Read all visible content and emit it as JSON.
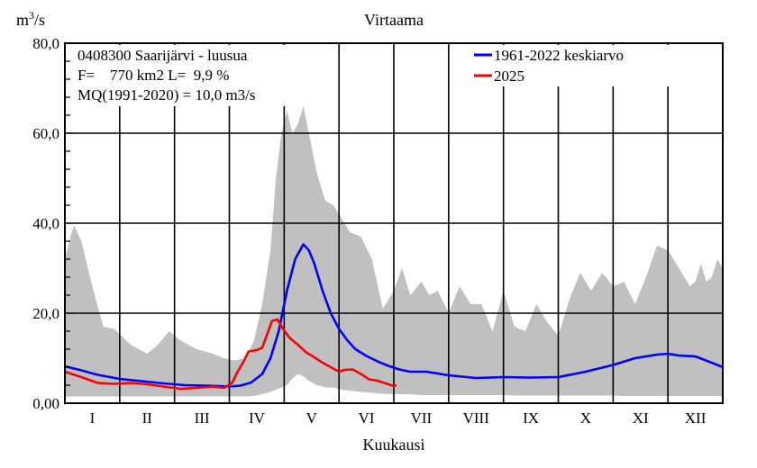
{
  "chart_data": {
    "type": "area",
    "title": "Virtaama",
    "ylabel_prefix": "m",
    "ylabel_sup": "3",
    "ylabel_suffix": "/s",
    "xlabel": "Kuukausi",
    "ylim": [
      0,
      80
    ],
    "xlim": [
      0,
      12
    ],
    "yticks": [
      {
        "value": 0,
        "label": "0,00"
      },
      {
        "value": 20,
        "label": "20,0"
      },
      {
        "value": 40,
        "label": "40,0"
      },
      {
        "value": 60,
        "label": "60,0"
      },
      {
        "value": 80,
        "label": "80,0"
      }
    ],
    "months": [
      "I",
      "II",
      "III",
      "IV",
      "V",
      "VI",
      "VII",
      "VIII",
      "IX",
      "X",
      "XI",
      "XII"
    ],
    "grid": true,
    "legend_placement": "top-right",
    "info": [
      "0408300 Saarijärvi - luusua",
      "F=    770 km2 L=  9,9 %",
      "MQ(1991-2020) = 10,0 m3/s"
    ],
    "colors": {
      "mean": "#0000ff",
      "current": "#ff0000",
      "range": "#c0c0c0"
    },
    "band": {
      "x": [
        0.0,
        0.1,
        0.17,
        0.3,
        0.5,
        0.7,
        0.9,
        1.2,
        1.5,
        1.7,
        1.9,
        2.1,
        2.4,
        2.7,
        2.9,
        3.1,
        3.3,
        3.45,
        3.6,
        3.75,
        3.85,
        3.95,
        4.05,
        4.15,
        4.25,
        4.35,
        4.45,
        4.6,
        4.75,
        4.9,
        5.05,
        5.2,
        5.4,
        5.6,
        5.8,
        6.0,
        6.15,
        6.3,
        6.5,
        6.65,
        6.8,
        7.0,
        7.2,
        7.4,
        7.6,
        7.8,
        8.0,
        8.2,
        8.4,
        8.6,
        8.8,
        9.0,
        9.2,
        9.4,
        9.6,
        9.8,
        10.0,
        10.2,
        10.4,
        10.6,
        10.8,
        11.0,
        11.2,
        11.4,
        11.5,
        11.6,
        11.7,
        11.8,
        11.9,
        12.0
      ],
      "upper": [
        32,
        37,
        39.5,
        36,
        26,
        17,
        16.5,
        13,
        11,
        13,
        16,
        14,
        12,
        11,
        10,
        9.5,
        10,
        14,
        22,
        34,
        50,
        60,
        65,
        60,
        62,
        66,
        60,
        51,
        45,
        44,
        41,
        38,
        37,
        32,
        21,
        25,
        30,
        24,
        27,
        24,
        25,
        20,
        26,
        22,
        22,
        16,
        25,
        17,
        16,
        22,
        18,
        15,
        23,
        29,
        25,
        29,
        26,
        27,
        22,
        28,
        35,
        34,
        30,
        26,
        27,
        31,
        27,
        28,
        32,
        30
      ],
      "lower": [
        1.5,
        1.5,
        1.5,
        1.5,
        1.5,
        1.5,
        1.5,
        1.5,
        1.5,
        1.5,
        1.5,
        1.5,
        1.5,
        1.5,
        1.5,
        1.5,
        1.5,
        1.6,
        2.0,
        2.5,
        3.0,
        3.5,
        4.0,
        5.5,
        6.5,
        6.0,
        5.0,
        4.0,
        3.5,
        3.5,
        3.0,
        2.8,
        2.5,
        2.3,
        2.1,
        2.0,
        2.0,
        2.0,
        1.8,
        1.8,
        1.8,
        1.8,
        1.8,
        1.8,
        1.8,
        1.8,
        1.8,
        1.7,
        1.7,
        1.7,
        1.7,
        1.7,
        1.7,
        1.7,
        1.7,
        1.7,
        1.7,
        1.6,
        1.6,
        1.6,
        1.6,
        1.6,
        1.6,
        1.6,
        1.6,
        1.6,
        1.6,
        1.6,
        1.6,
        1.5
      ]
    },
    "series": [
      {
        "name": "1961-2022 keskiarvo",
        "color": "#0000ff",
        "x": [
          0.0,
          0.3,
          0.6,
          1.0,
          1.4,
          1.8,
          2.2,
          2.6,
          3.0,
          3.2,
          3.4,
          3.6,
          3.75,
          3.9,
          4.05,
          4.2,
          4.35,
          4.45,
          4.55,
          4.7,
          4.85,
          5.0,
          5.15,
          5.3,
          5.5,
          5.7,
          5.9,
          6.1,
          6.3,
          6.6,
          7.0,
          7.5,
          8.0,
          8.5,
          9.0,
          9.5,
          10.0,
          10.4,
          10.8,
          11.0,
          11.2,
          11.5,
          11.8,
          12.0
        ],
        "y": [
          8.2,
          7.3,
          6.3,
          5.4,
          4.9,
          4.4,
          4.0,
          3.9,
          3.7,
          3.9,
          4.6,
          6.5,
          10.0,
          16.0,
          25.0,
          32.0,
          35.3,
          34.0,
          31.0,
          25.0,
          20.0,
          16.5,
          14.0,
          12.0,
          10.5,
          9.3,
          8.3,
          7.5,
          7.0,
          7.0,
          6.2,
          5.6,
          5.8,
          5.7,
          5.8,
          7.0,
          8.5,
          10.0,
          10.8,
          11.0,
          10.6,
          10.4,
          9.0,
          8.0
        ]
      },
      {
        "name": "2025",
        "color": "#ff0000",
        "x": [
          0.0,
          0.3,
          0.6,
          0.9,
          1.2,
          1.5,
          1.8,
          2.1,
          2.4,
          2.7,
          2.9,
          3.05,
          3.15,
          3.25,
          3.35,
          3.5,
          3.6,
          3.68,
          3.78,
          3.88,
          3.98,
          4.1,
          4.25,
          4.4,
          4.55,
          4.7,
          4.85,
          5.0,
          5.1,
          5.25,
          5.4,
          5.55,
          5.7,
          5.85,
          6.0,
          6.05
        ],
        "y": [
          7.0,
          5.8,
          4.5,
          4.3,
          4.5,
          4.2,
          3.7,
          3.2,
          3.4,
          3.7,
          3.4,
          4.5,
          7.0,
          9.0,
          11.5,
          11.8,
          12.3,
          15.0,
          18.3,
          18.6,
          16.5,
          14.5,
          13.0,
          11.3,
          10.2,
          9.0,
          8.0,
          7.0,
          7.4,
          7.5,
          6.5,
          5.3,
          5.0,
          4.4,
          3.8,
          4.0
        ]
      }
    ]
  }
}
